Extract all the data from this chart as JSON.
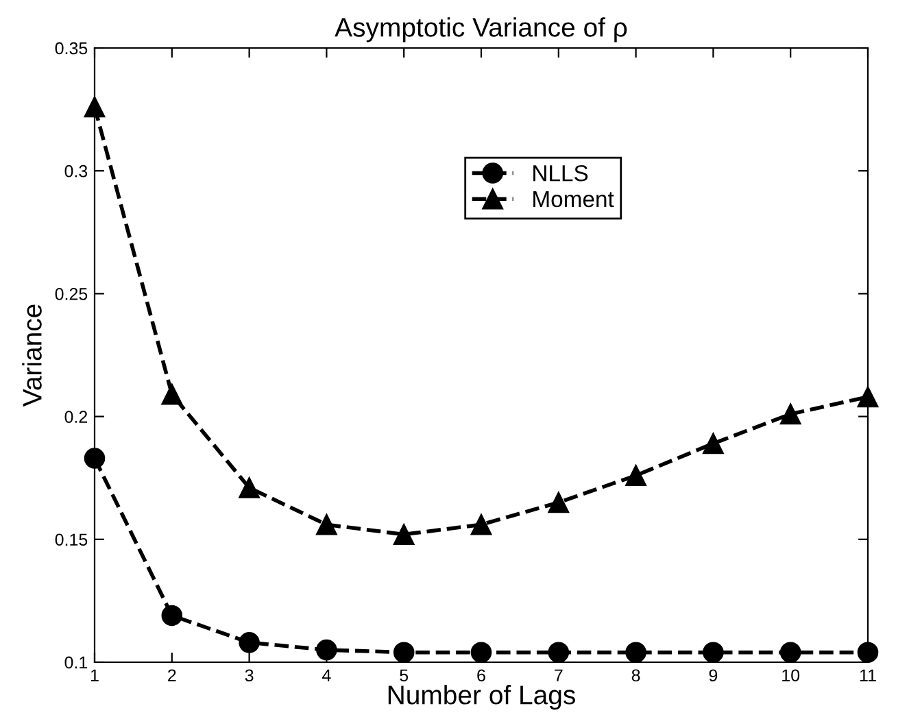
{
  "chart_data": {
    "type": "line",
    "title": "Asymptotic Variance of ρ",
    "xlabel": "Number of Lags",
    "ylabel": "Variance",
    "x": [
      1,
      2,
      3,
      4,
      5,
      6,
      7,
      8,
      9,
      10,
      11
    ],
    "series": [
      {
        "name": "NLLS",
        "color": "#000000",
        "marker": "circle",
        "values": [
          0.183,
          0.119,
          0.108,
          0.105,
          0.104,
          0.104,
          0.104,
          0.104,
          0.104,
          0.104,
          0.104
        ]
      },
      {
        "name": "Moment",
        "color": "#000000",
        "marker": "triangle",
        "values": [
          0.326,
          0.209,
          0.171,
          0.156,
          0.152,
          0.156,
          0.165,
          0.176,
          0.189,
          0.201,
          0.208
        ]
      }
    ],
    "xlim": [
      1,
      11
    ],
    "xticks": [
      1,
      2,
      3,
      4,
      5,
      6,
      7,
      8,
      9,
      10,
      11
    ],
    "ylim": [
      0.1,
      0.35
    ],
    "yticks": [
      0.1,
      0.15,
      0.2,
      0.25,
      0.3,
      0.35
    ],
    "line_style": "dashed",
    "grid": false,
    "legend": "top"
  }
}
